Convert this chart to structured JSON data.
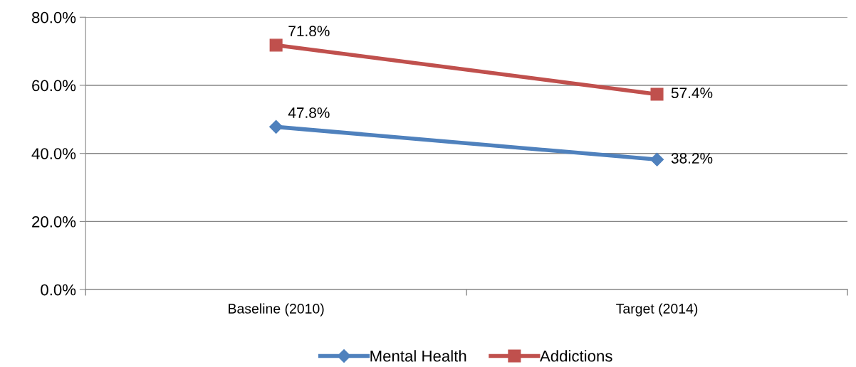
{
  "chart_data": {
    "type": "line",
    "categories": [
      "Baseline (2010)",
      "Target (2014)"
    ],
    "series": [
      {
        "name": "Mental Health",
        "color": "#4f81bd",
        "marker": "diamond",
        "values": [
          47.8,
          38.2
        ],
        "value_labels": [
          "47.8%",
          "38.2%"
        ]
      },
      {
        "name": "Addictions",
        "color": "#c0504d",
        "marker": "square",
        "values": [
          71.8,
          57.4
        ],
        "value_labels": [
          "71.8%",
          "57.4%"
        ]
      }
    ],
    "ylim": [
      0,
      80
    ],
    "yticks": [
      {
        "value": 0,
        "label": "0.0%"
      },
      {
        "value": 20,
        "label": "20.0%"
      },
      {
        "value": 40,
        "label": "40.0%"
      },
      {
        "value": 60,
        "label": "60.0%"
      },
      {
        "value": 80,
        "label": "80.0%"
      }
    ],
    "grid": "y",
    "legend": "bottom",
    "line_style": "solid"
  }
}
